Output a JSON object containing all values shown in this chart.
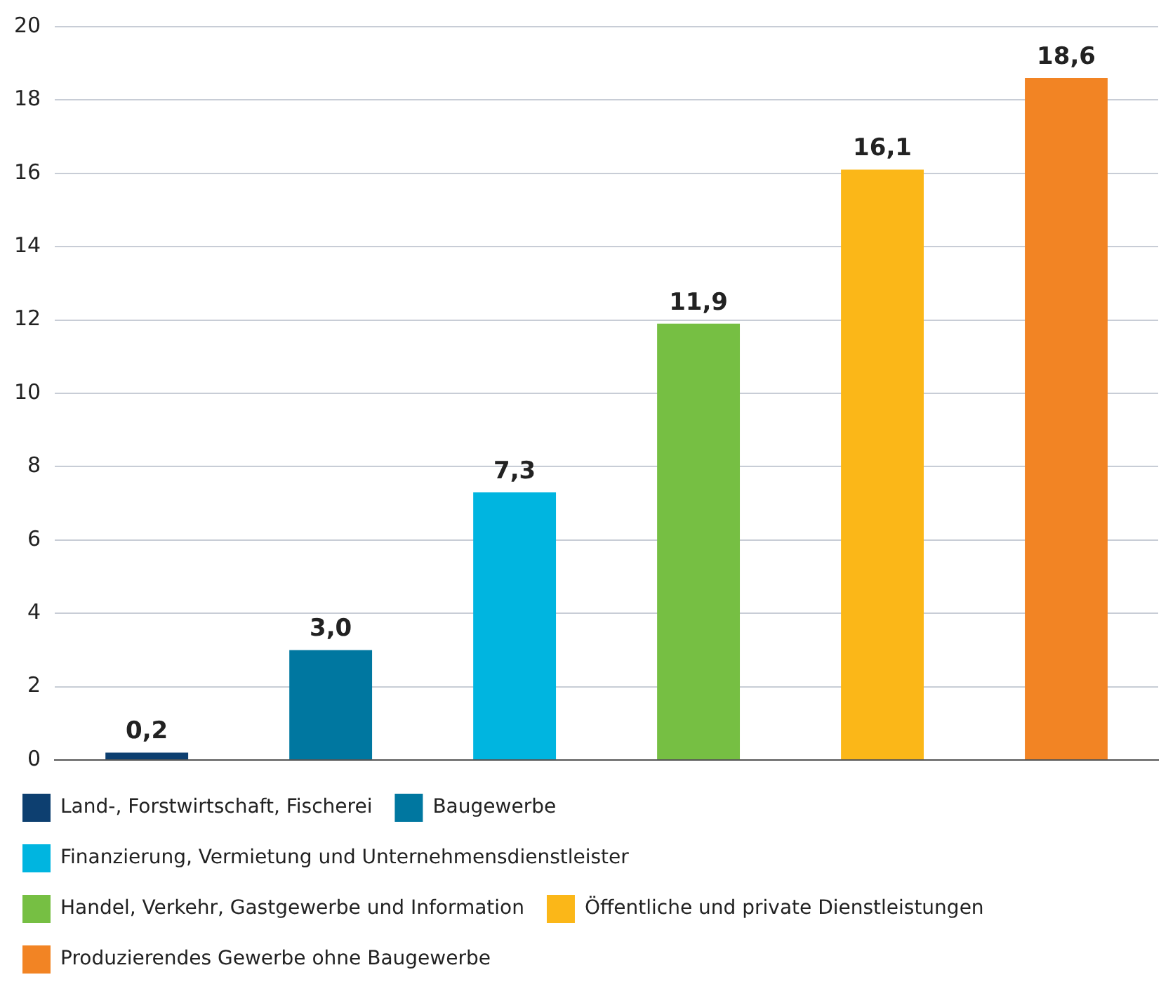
{
  "chart_data": {
    "type": "bar",
    "categories": [
      null,
      null,
      null,
      null,
      null,
      null
    ],
    "series": [
      {
        "name": "Land-, Forstwirtschaft, Fischerei",
        "color": "#0d3f70",
        "values": [
          0.2,
          null,
          null,
          null,
          null,
          null
        ],
        "value_labels": [
          "0,2",
          null,
          null,
          null,
          null,
          null
        ]
      },
      {
        "name": "Baugewerbe",
        "color": "#0077a0",
        "values": [
          null,
          3.0,
          null,
          null,
          null,
          null
        ],
        "value_labels": [
          null,
          "3,0",
          null,
          null,
          null,
          null
        ]
      },
      {
        "name": "Finanzierung, Vermietung und Unternehmensdienstleister",
        "color": "#00b5e0",
        "values": [
          null,
          null,
          7.3,
          null,
          null,
          null
        ],
        "value_labels": [
          null,
          null,
          "7,3",
          null,
          null,
          null
        ]
      },
      {
        "name": "Handel, Verkehr, Gastgewerbe und Information",
        "color": "#76bf43",
        "values": [
          null,
          null,
          null,
          11.9,
          null,
          null
        ],
        "value_labels": [
          null,
          null,
          null,
          "11,9",
          null,
          null
        ]
      },
      {
        "name": "Öffentliche und private Dienstleistungen",
        "color": "#fbb718",
        "values": [
          null,
          null,
          null,
          null,
          16.1,
          null
        ],
        "value_labels": [
          null,
          null,
          null,
          null,
          "16,1",
          null
        ]
      },
      {
        "name": "Produzierendes Gewerbe ohne Baugewerbe",
        "color": "#f28424",
        "values": [
          null,
          null,
          null,
          null,
          null,
          18.6
        ],
        "value_labels": [
          null,
          null,
          null,
          null,
          null,
          "18,6"
        ]
      }
    ],
    "ylim": [
      0,
      20
    ],
    "yticks": [
      0,
      2,
      4,
      6,
      8,
      10,
      12,
      14,
      16,
      18,
      20
    ],
    "grid": "y",
    "legend": "bottom"
  }
}
